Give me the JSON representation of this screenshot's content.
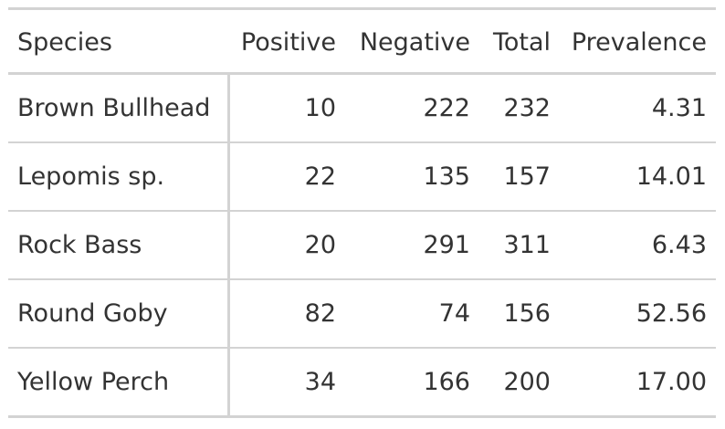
{
  "table": {
    "headers": {
      "species": "Species",
      "positive": "Positive",
      "negative": "Negative",
      "total": "Total",
      "prevalence": "Prevalence"
    },
    "rows": [
      {
        "species": "Brown Bullhead",
        "positive": "10",
        "negative": "222",
        "total": "232",
        "prevalence": "4.31"
      },
      {
        "species": "Lepomis sp.",
        "positive": "22",
        "negative": "135",
        "total": "157",
        "prevalence": "14.01"
      },
      {
        "species": "Rock Bass",
        "positive": "20",
        "negative": "291",
        "total": "311",
        "prevalence": "6.43"
      },
      {
        "species": "Round Goby",
        "positive": "82",
        "negative": "74",
        "total": "156",
        "prevalence": "52.56"
      },
      {
        "species": "Yellow Perch",
        "positive": "34",
        "negative": "166",
        "total": "200",
        "prevalence": "17.00"
      }
    ]
  },
  "colors": {
    "text": "#333333",
    "rule": "#d3d3d3",
    "background": "#ffffff"
  }
}
